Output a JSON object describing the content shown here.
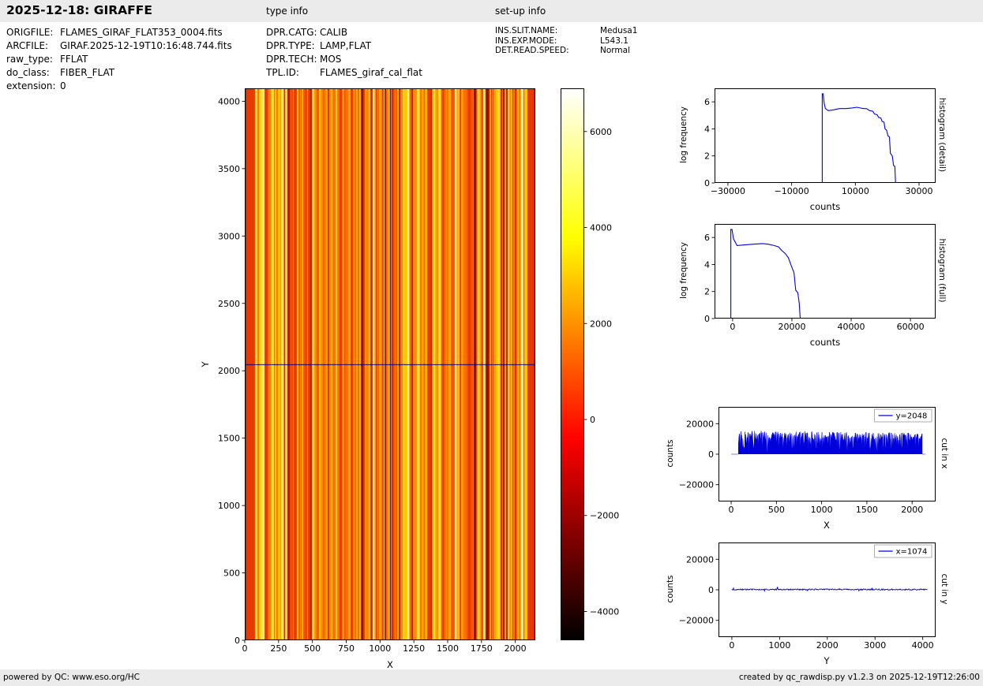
{
  "header": {
    "title": "2025-12-18: GIRAFFE",
    "type_info_label": "type info",
    "setup_info_label": "set-up info"
  },
  "file_info": {
    "rows": [
      {
        "label": "ORIGFILE:",
        "value": "FLAMES_GIRAF_FLAT353_0004.fits"
      },
      {
        "label": "ARCFILE:",
        "value": "GIRAF.2025-12-19T10:16:48.744.fits"
      },
      {
        "label": "raw_type:",
        "value": "FFLAT"
      },
      {
        "label": "do_class:",
        "value": "FIBER_FLAT"
      },
      {
        "label": "extension:",
        "value": "0"
      }
    ]
  },
  "type_info": {
    "rows": [
      {
        "label": "DPR.CATG:",
        "value": "CALIB"
      },
      {
        "label": "DPR.TYPE:",
        "value": "LAMP,FLAT"
      },
      {
        "label": "DPR.TECH:",
        "value": "MOS"
      },
      {
        "label": "TPL.ID:",
        "value": "FLAMES_giraf_cal_flat"
      }
    ]
  },
  "setup_info": {
    "rows": [
      {
        "label": "INS.SLIT.NAME:",
        "value": "Medusa1"
      },
      {
        "label": "INS.EXP.MODE:",
        "value": "L543.1"
      },
      {
        "label": "DET.READ.SPEED:",
        "value": "Normal"
      }
    ]
  },
  "footer": {
    "left": "powered by QC: www.eso.org/HC",
    "right": "created by qc_rawdisp.py v1.2.3 on 2025-12-19T12:26:00"
  },
  "chart_data": [
    {
      "id": "raw_frame",
      "type": "heatmap",
      "description": "GIRAFFE raw fiber-flat frame: dense vertical fiber traces in hot colormap",
      "xlabel": "X",
      "ylabel": "Y",
      "xlim": [
        0,
        2148
      ],
      "ylim": [
        0,
        4096
      ],
      "xticks": [
        0,
        250,
        500,
        750,
        1000,
        1250,
        1500,
        1750,
        2000
      ],
      "yticks": [
        0,
        500,
        1000,
        1500,
        2000,
        2500,
        3000,
        3500,
        4000
      ],
      "colormap": "hot",
      "crosshair": {
        "x": 1074,
        "y": 2048
      },
      "crosshair_color": "#00008b",
      "colorbar": {
        "range": [
          -4600,
          6900
        ],
        "ticks": [
          6000,
          4000,
          2000,
          0,
          -2000,
          -4000
        ],
        "tick_labels": [
          "6000",
          "4000",
          "2000",
          "0",
          "−2000",
          "−4000"
        ]
      },
      "stripes": {
        "seed": 20251218,
        "left_band_end": 78,
        "right_band_start": 2092,
        "band_color": "#e63a00",
        "edge_color": "#c21c00",
        "palette": [
          "#b81500",
          "#d42400",
          "#ea3800",
          "#f55200",
          "#ff6f00",
          "#ff8c00",
          "#ffab00",
          "#ffc800",
          "#ffe13c",
          "#fff0a0",
          "#8f0d00"
        ],
        "weights": [
          0.07,
          0.1,
          0.12,
          0.12,
          0.12,
          0.11,
          0.1,
          0.1,
          0.08,
          0.05,
          0.03
        ]
      }
    },
    {
      "id": "histogram_detail",
      "type": "line",
      "right_label": "histogram (detail)",
      "xlabel": "counts",
      "ylabel": "log frequency",
      "xlim": [
        -34200,
        35200
      ],
      "ylim": [
        0,
        7
      ],
      "xticks": [
        -30000,
        -10000,
        10000,
        30000
      ],
      "yticks": [
        0,
        2,
        4,
        6
      ],
      "color": "#0000ee",
      "x": [
        -400,
        -400,
        -100,
        200,
        600,
        1500,
        3000,
        5000,
        7000,
        9000,
        10500,
        11500,
        12500,
        13500,
        14500,
        15500,
        16000,
        16800,
        17300,
        18000,
        18400,
        19000,
        19300,
        19800,
        20200,
        20700,
        21000,
        21600,
        22000,
        22400,
        22600
      ],
      "y": [
        0,
        6.6,
        6.6,
        5.9,
        5.5,
        5.35,
        5.4,
        5.5,
        5.5,
        5.55,
        5.6,
        5.55,
        5.5,
        5.5,
        5.35,
        5.3,
        5.1,
        5.05,
        4.85,
        4.8,
        4.55,
        4.5,
        4.0,
        3.9,
        3.5,
        3.4,
        2.2,
        2.0,
        1.3,
        1.2,
        0
      ]
    },
    {
      "id": "histogram_full",
      "type": "line",
      "right_label": "histogram (full)",
      "xlabel": "counts",
      "ylabel": "log frequency",
      "xlim": [
        -6100,
        68500
      ],
      "ylim": [
        0,
        7
      ],
      "xticks": [
        0,
        20000,
        40000,
        60000
      ],
      "yticks": [
        0,
        2,
        4,
        6
      ],
      "color": "#0000ee",
      "x": [
        -600,
        -600,
        -200,
        300,
        1500,
        4000,
        7000,
        10000,
        12000,
        14000,
        15500,
        16500,
        17800,
        18800,
        19800,
        20700,
        21300,
        22000,
        22500,
        22800
      ],
      "y": [
        0,
        6.6,
        6.6,
        5.9,
        5.4,
        5.45,
        5.5,
        5.55,
        5.5,
        5.4,
        5.3,
        5.05,
        4.8,
        4.5,
        3.9,
        3.4,
        2.1,
        1.9,
        1.1,
        0
      ]
    },
    {
      "id": "cut_in_x",
      "type": "area",
      "right_label": "cut in x",
      "xlabel": "X",
      "ylabel": "counts",
      "legend": "y=2048",
      "xlim": [
        -140,
        2260
      ],
      "ylim": [
        -31000,
        31000
      ],
      "xticks": [
        0,
        500,
        1000,
        1500,
        2000
      ],
      "yticks": [
        -20000,
        0,
        20000
      ],
      "color": "#0000dd",
      "baseline": {
        "x0": 0,
        "x1": 2148
      },
      "noise": {
        "seed": 1074,
        "n": 420,
        "x_start": 80,
        "x_end": 2112,
        "top": 15500,
        "min_frac": 0.62,
        "dip_prob": 0.22,
        "slope": 0.1
      }
    },
    {
      "id": "cut_in_y",
      "type": "line",
      "right_label": "cut in y",
      "xlabel": "Y",
      "ylabel": "counts",
      "legend": "x=1074",
      "xlim": [
        -280,
        4270
      ],
      "ylim": [
        -31000,
        31000
      ],
      "xticks": [
        0,
        1000,
        2000,
        3000,
        4000
      ],
      "yticks": [
        -20000,
        0,
        20000
      ],
      "color": "#0000dd",
      "noise": {
        "seed": 2048,
        "n": 360,
        "x_start": 0,
        "x_end": 4096,
        "base": 200,
        "spread": 400,
        "spike_prob": 0.03,
        "spike": 1400
      }
    }
  ]
}
